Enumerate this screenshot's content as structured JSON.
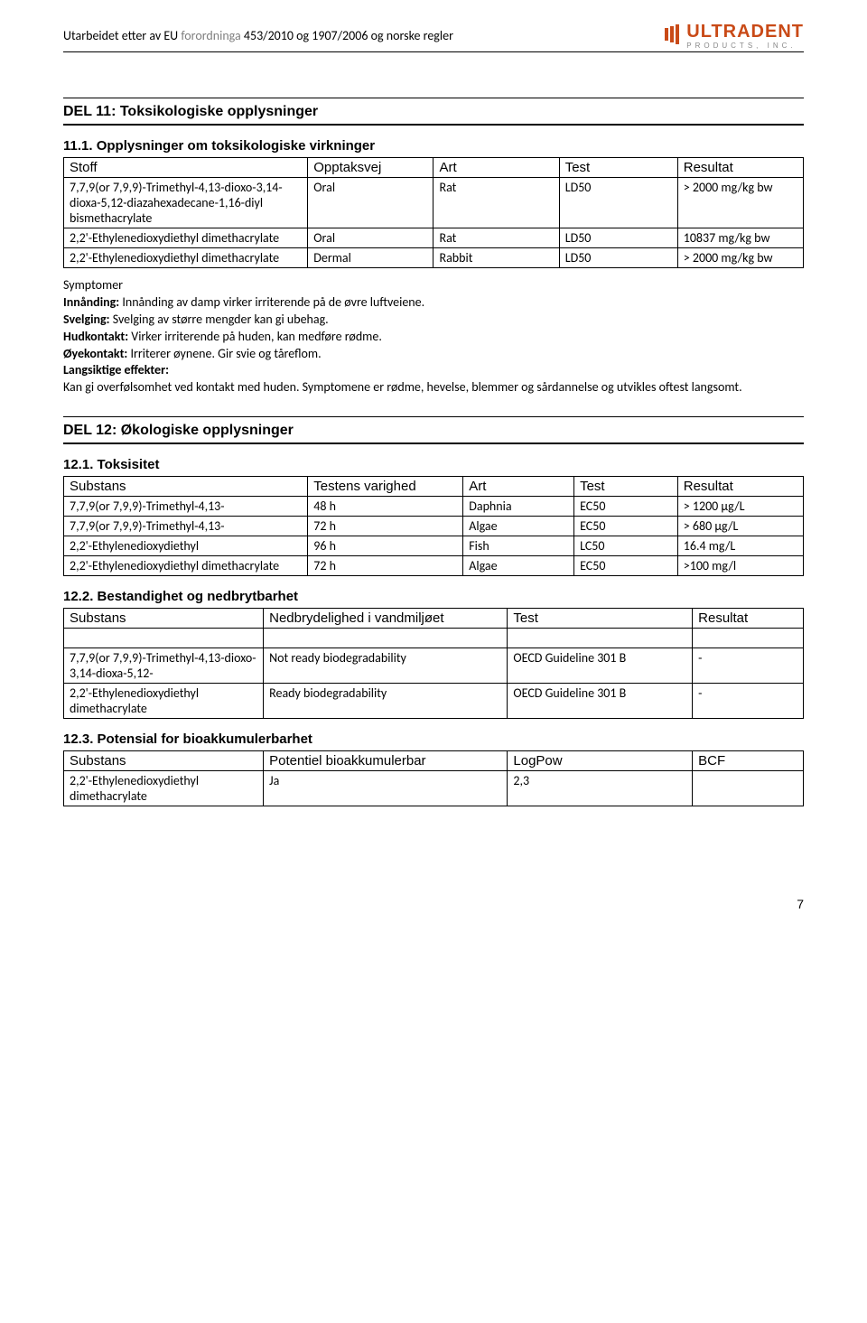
{
  "header": {
    "prefix": "Utarbeidet etter av EU ",
    "grey": "forordninga",
    "suffix": " 453/2010 og 1907/2006 og norske regler",
    "logo_main": "ULTRADENT",
    "logo_sub": "PRODUCTS, INC."
  },
  "sec11": {
    "title": "DEL 11: Toksikologiske opplysninger",
    "sub": "11.1. Opplysninger om toksikologiske virkninger",
    "headers": [
      "Stoff",
      "Opptaksvej",
      "Art",
      "Test",
      "Resultat"
    ],
    "rows": [
      [
        "7,7,9(or 7,9,9)-Trimethyl-4,13-dioxo-3,14-dioxa-5,12-diazahexadecane-1,16-diyl bismethacrylate",
        "Oral",
        "Rat",
        "LD50",
        "> 2000 mg/kg bw"
      ],
      [
        "2,2'-Ethylenedioxydiethyl dimethacrylate",
        "Oral",
        "Rat",
        "LD50",
        "10837 mg/kg bw"
      ],
      [
        "2,2'-Ethylenedioxydiethyl dimethacrylate",
        "Dermal",
        "Rabbit",
        "LD50",
        "> 2000 mg/kg bw"
      ]
    ],
    "symptom_lines": [
      {
        "label": "Symptomer",
        "text": ""
      },
      {
        "label": "Innånding:",
        "text": " Innånding av damp virker irriterende på de øvre luftveiene."
      },
      {
        "label": "Svelging:",
        "text": " Svelging av større mengder kan gi ubehag."
      },
      {
        "label": "Hudkontakt:",
        "text": " Virker irriterende på huden, kan medføre rødme."
      },
      {
        "label": "Øyekontakt:",
        "text": " Irriterer øynene. Gir svie og tåreflom."
      },
      {
        "label": "Langsiktige effekter:",
        "text": ""
      }
    ],
    "longterm": "Kan gi overfølsomhet ved kontakt med huden. Symptomene er rødme, hevelse, blemmer og sårdannelse og utvikles oftest langsomt."
  },
  "sec12": {
    "title": "DEL 12: Økologiske opplysninger",
    "s1": {
      "title": "12.1. Toksisitet",
      "headers": [
        "Substans",
        "Testens varighed",
        "Art",
        "Test",
        "Resultat"
      ],
      "rows": [
        [
          "7,7,9(or 7,9,9)-Trimethyl-4,13-",
          "48 h",
          "Daphnia",
          "EC50",
          "> 1200 µg/L"
        ],
        [
          "7,7,9(or 7,9,9)-Trimethyl-4,13-",
          "72 h",
          "Algae",
          "EC50",
          "> 680 µg/L"
        ],
        [
          "2,2'-Ethylenedioxydiethyl",
          "96 h",
          "Fish",
          "LC50",
          "16.4 mg/L"
        ],
        [
          "2,2'-Ethylenedioxydiethyl dimethacrylate",
          "72 h",
          "Algae",
          "EC50",
          ">100 mg/l"
        ]
      ]
    },
    "s2": {
      "title": "12.2. Bestandighet og nedbrytbarhet",
      "headers": [
        "Substans",
        "Nedbrydelighed i vandmiljøet",
        "Test",
        "Resultat"
      ],
      "rows": [
        [
          "7,7,9(or 7,9,9)-Trimethyl-4,13-dioxo-3,14-dioxa-5,12-",
          "Not ready biodegradability",
          "OECD Guideline 301 B",
          "-"
        ],
        [
          "2,2'-Ethylenedioxydiethyl dimethacrylate",
          "Ready biodegradability",
          "OECD Guideline 301 B",
          "-"
        ]
      ]
    },
    "s3": {
      "title": "12.3. Potensial for bioakkumulerbarhet",
      "headers": [
        "Substans",
        "Potentiel bioakkumulerbar",
        "LogPow",
        "BCF"
      ],
      "rows": [
        [
          "2,2'-Ethylenedioxydiethyl dimethacrylate",
          "Ja",
          "2,3",
          ""
        ]
      ]
    }
  },
  "pagenum": "7",
  "widths": {
    "t11": [
      "33%",
      "17%",
      "17%",
      "16%",
      "17%"
    ],
    "t121": [
      "33%",
      "21%",
      "15%",
      "14%",
      "17%"
    ],
    "t122": [
      "27%",
      "33%",
      "25%",
      "15%"
    ],
    "t123": [
      "27%",
      "33%",
      "25%",
      "15%"
    ]
  }
}
